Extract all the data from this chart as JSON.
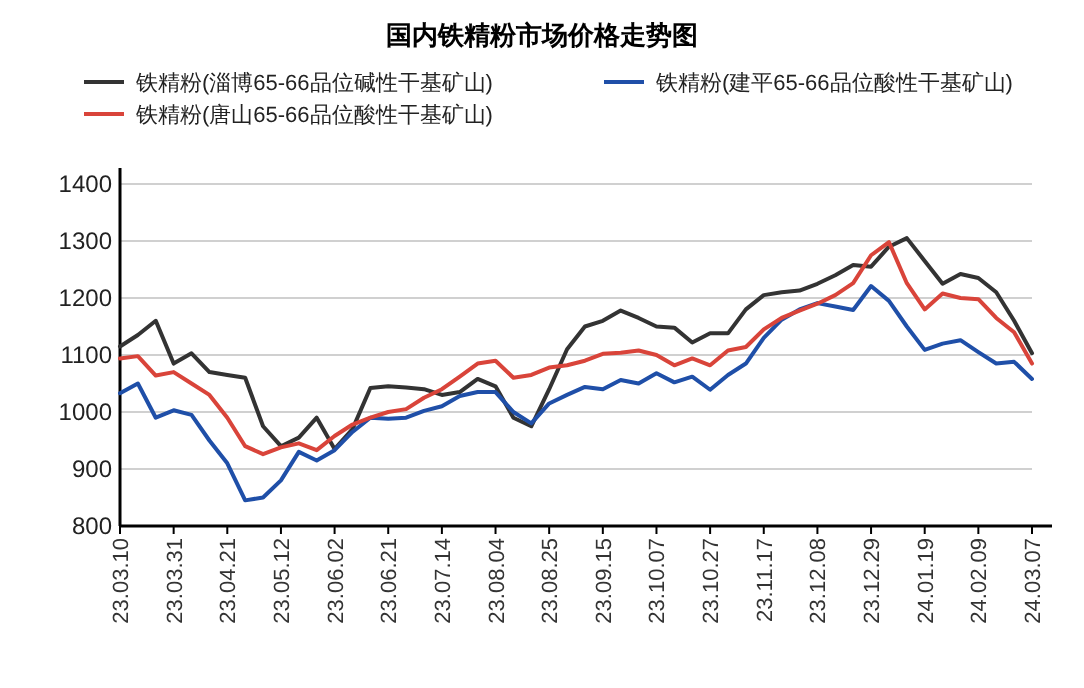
{
  "chart_data": {
    "type": "line",
    "title": "国内铁精粉市场价格走势图",
    "categories": [
      "23.03.10",
      null,
      null,
      "23.03.31",
      null,
      null,
      "23.04.21",
      null,
      null,
      "23.05.12",
      null,
      null,
      "23.06.02",
      null,
      null,
      "23.06.21",
      null,
      null,
      "23.07.14",
      null,
      null,
      "23.08.04",
      null,
      null,
      "23.08.25",
      null,
      null,
      "23.09.15",
      null,
      null,
      "23.10.07",
      null,
      null,
      "23.10.27",
      null,
      null,
      "23.11.17",
      null,
      null,
      "23.12.08",
      null,
      null,
      "23.12.29",
      null,
      null,
      "24.01.19",
      null,
      null,
      "24.02.09",
      null,
      null,
      "24.03.07"
    ],
    "series": [
      {
        "name": "铁精粉(淄博65-66品位碱性干基矿山)",
        "color": "#333333",
        "values": [
          1115,
          1135,
          1160,
          1085,
          1103,
          1070,
          1065,
          1060,
          975,
          940,
          955,
          990,
          935,
          970,
          1042,
          1045,
          1043,
          1040,
          1030,
          1035,
          1058,
          1045,
          990,
          975,
          1040,
          1110,
          1150,
          1160,
          1178,
          1165,
          1150,
          1148,
          1122,
          1138,
          1138,
          1180,
          1205,
          1210,
          1213,
          1225,
          1240,
          1258,
          1255,
          1290,
          1305,
          1265,
          1225,
          1242,
          1235,
          1210,
          1160,
          1103
        ]
      },
      {
        "name": "铁精粉(建平65-66品位酸性干基矿山)",
        "color": "#1f4fa8",
        "values": [
          1033,
          1050,
          990,
          1003,
          995,
          950,
          910,
          845,
          850,
          880,
          930,
          915,
          933,
          965,
          990,
          988,
          990,
          1002,
          1010,
          1028,
          1035,
          1035,
          1000,
          980,
          1015,
          1030,
          1044,
          1040,
          1056,
          1050,
          1068,
          1052,
          1062,
          1039,
          1065,
          1085,
          1130,
          1162,
          1180,
          1191,
          1185,
          1179,
          1221,
          1195,
          1150,
          1109,
          1120,
          1126,
          1105,
          1085,
          1088,
          1058
        ]
      },
      {
        "name": "铁精粉(唐山65-66品位酸性干基矿山)",
        "color": "#d9443a",
        "values": [
          1094,
          1098,
          1064,
          1070,
          1050,
          1030,
          990,
          940,
          926,
          938,
          945,
          933,
          958,
          978,
          990,
          1000,
          1005,
          1025,
          1040,
          1062,
          1085,
          1090,
          1060,
          1065,
          1078,
          1082,
          1090,
          1102,
          1104,
          1108,
          1100,
          1082,
          1094,
          1082,
          1108,
          1114,
          1145,
          1165,
          1178,
          1190,
          1205,
          1226,
          1275,
          1298,
          1226,
          1180,
          1208,
          1200,
          1198,
          1165,
          1140,
          1085
        ]
      }
    ],
    "ylim": [
      800,
      1400
    ],
    "yticks": [
      800,
      900,
      1000,
      1100,
      1200,
      1300,
      1400
    ],
    "grid": "y",
    "legend": "top",
    "marker": "none",
    "line_style": "solid"
  }
}
